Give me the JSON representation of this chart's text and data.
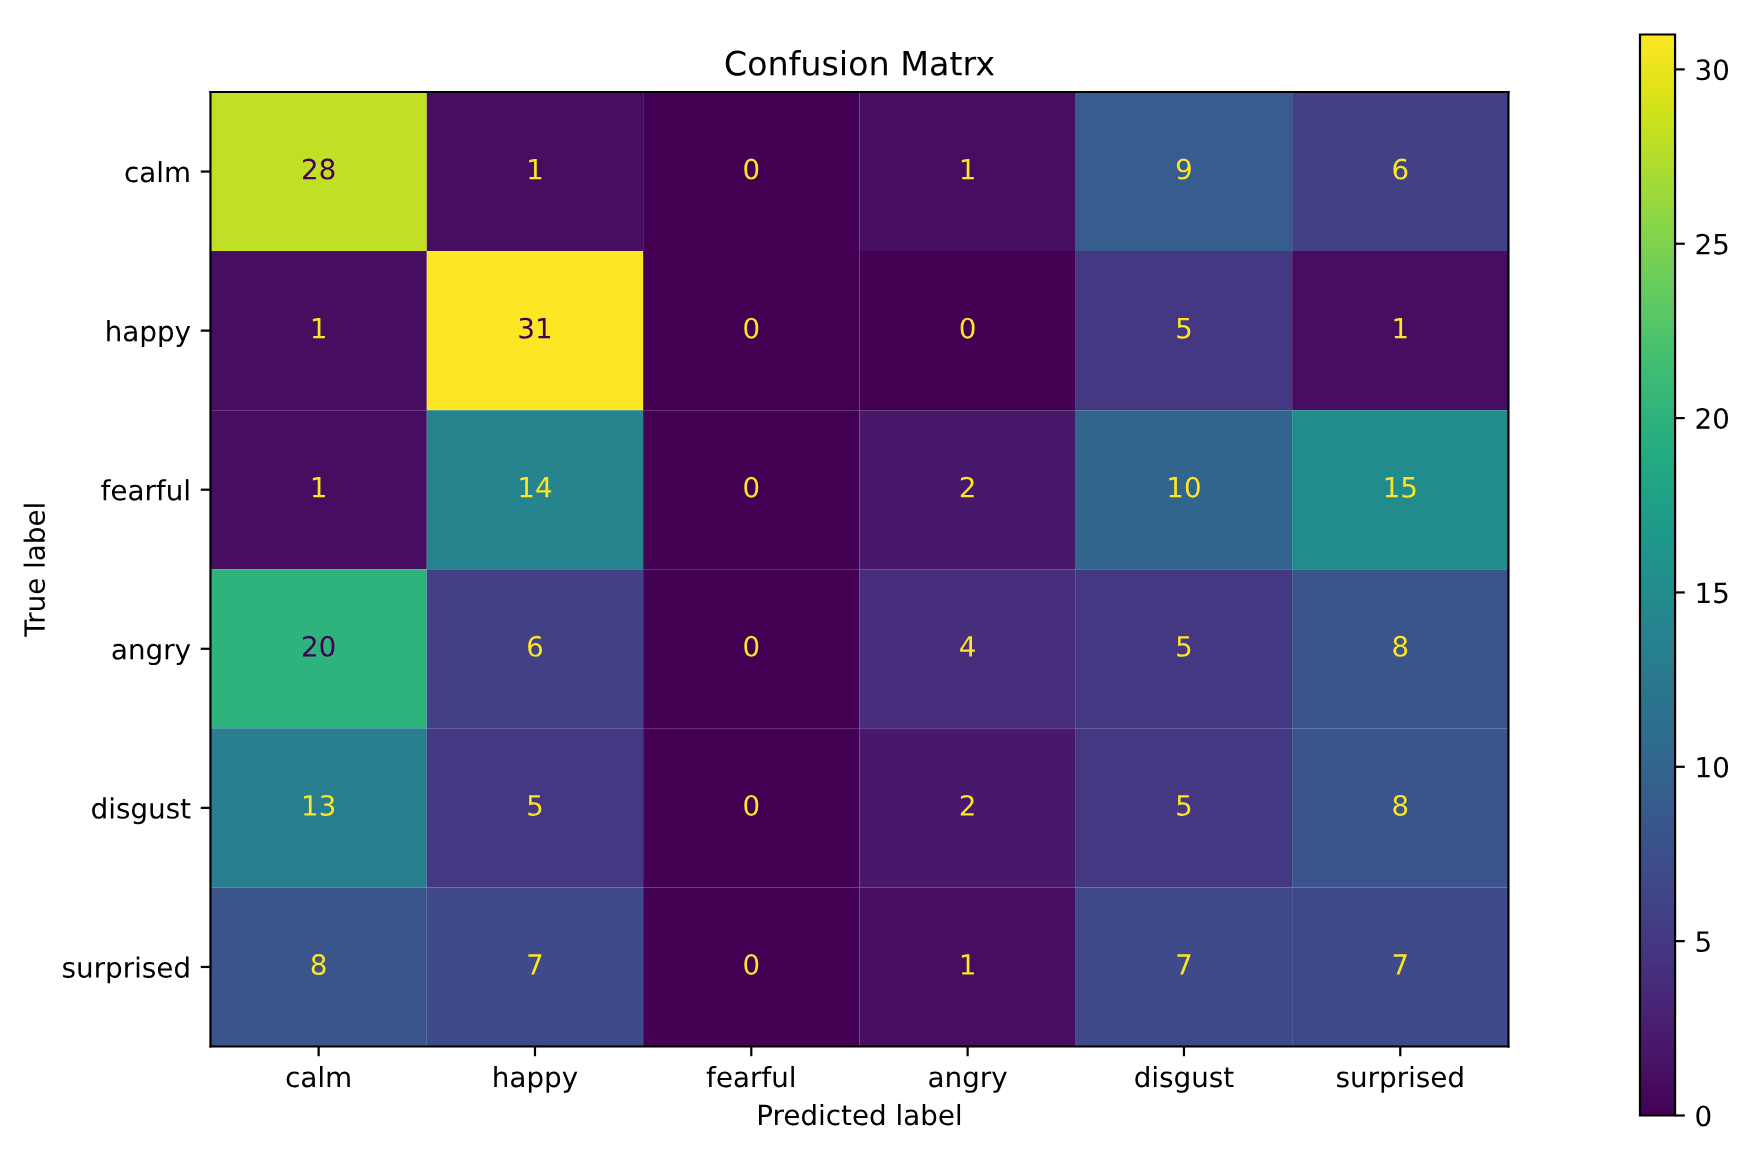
{
  "chart_data": {
    "type": "heatmap",
    "title": "Confusion Matrx",
    "xlabel": "Predicted label",
    "ylabel": "True label",
    "categories": [
      "calm",
      "happy",
      "fearful",
      "angry",
      "disgust",
      "surprised"
    ],
    "y_categories": [
      "calm",
      "happy",
      "fearful",
      "angry",
      "disgust",
      "surprised"
    ],
    "cells": [
      [
        28,
        1,
        0,
        1,
        9,
        6
      ],
      [
        1,
        31,
        0,
        0,
        5,
        1
      ],
      [
        1,
        14,
        0,
        2,
        10,
        15
      ],
      [
        20,
        6,
        0,
        4,
        5,
        8
      ],
      [
        13,
        5,
        0,
        2,
        5,
        8
      ],
      [
        8,
        7,
        0,
        1,
        7,
        7
      ]
    ],
    "clim": [
      0,
      31
    ],
    "cticks": [
      0,
      5,
      10,
      15,
      20,
      25,
      30
    ],
    "data_labels": true,
    "grid": false
  }
}
